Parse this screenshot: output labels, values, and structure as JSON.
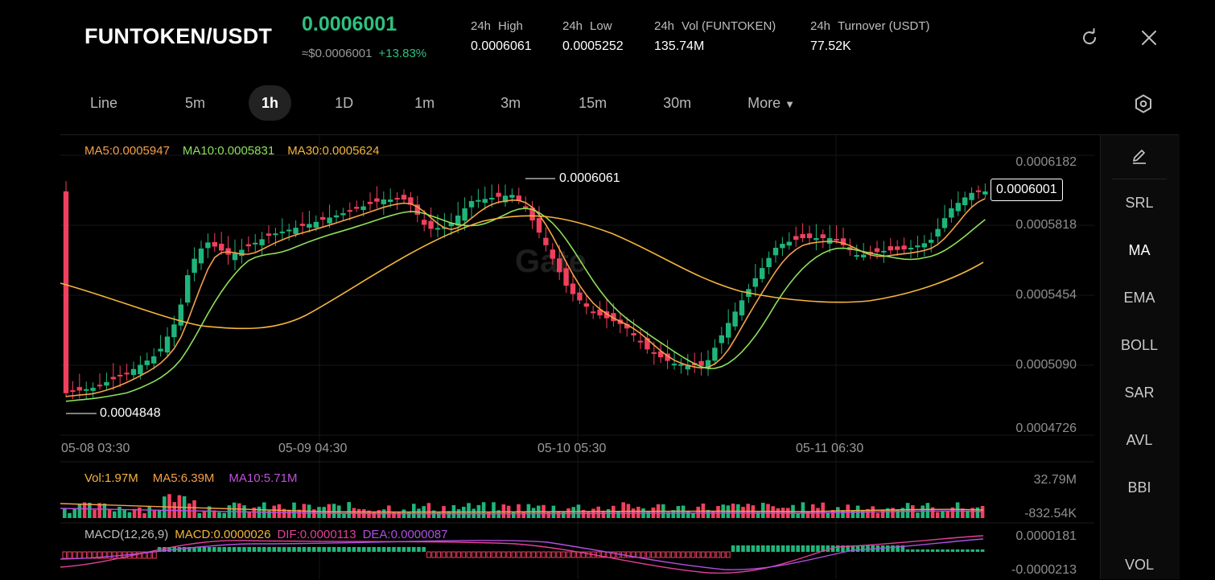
{
  "header": {
    "pair": "FUNTOKEN/USDT",
    "price": "0.0006001",
    "usd_price": "≈$0.0006001",
    "change": "+13.83%",
    "stats": [
      {
        "period": "24h",
        "label": "High",
        "value": "0.0006061"
      },
      {
        "period": "24h",
        "label": "Low",
        "value": "0.0005252"
      },
      {
        "period": "24h",
        "label": "Vol (FUNTOKEN)",
        "value": "135.74M"
      },
      {
        "period": "24h",
        "label": "Turnover (USDT)",
        "value": "77.52K"
      }
    ]
  },
  "tabs": [
    "Line",
    "5m",
    "1h",
    "1D",
    "1m",
    "3m",
    "15m",
    "30m",
    "More"
  ],
  "active_tab": "1h",
  "main_chart": {
    "ma_legend": [
      {
        "text": "MA5:0.0005947",
        "color": "#f5a04a"
      },
      {
        "text": "MA10:0.0005831",
        "color": "#8ee05a"
      },
      {
        "text": "MA30:0.0005624",
        "color": "#f4b63c"
      }
    ],
    "y_ticks": [
      "0.0006182",
      "0.0005818",
      "0.0005454",
      "0.0005090",
      "0.0004726"
    ],
    "x_ticks": [
      "05-08 03:30",
      "05-09 04:30",
      "05-10 05:30",
      "05-11 06:30"
    ],
    "high_marker": "0.0006061",
    "low_marker": "0.0004848",
    "current_price": "0.0006001",
    "watermark": "Gate"
  },
  "volume": {
    "legend": [
      {
        "text": "Vol:1.97M",
        "color": "#f4b63c"
      },
      {
        "text": "MA5:6.39M",
        "color": "#f5a04a"
      },
      {
        "text": "MA10:5.71M",
        "color": "#c04fe0"
      }
    ],
    "y_ticks": [
      "32.79M",
      "-832.54K"
    ]
  },
  "macd": {
    "legend": [
      {
        "text": "MACD(12,26,9)",
        "color": "#bdbdbd"
      },
      {
        "text": "MACD:0.0000026",
        "color": "#f4b63c"
      },
      {
        "text": "DIF:0.0000113",
        "color": "#e0409a"
      },
      {
        "text": "DEA:0.0000087",
        "color": "#b04fe0"
      }
    ],
    "y_ticks": [
      "0.0000181",
      "-0.0000213"
    ]
  },
  "indicators": [
    "SRL",
    "MA",
    "EMA",
    "BOLL",
    "SAR",
    "AVL",
    "BBI",
    "VOL"
  ],
  "active_indicator": "MA",
  "colors": {
    "up": "#1fb57a",
    "down": "#f0405e",
    "accent_green": "#2ec07f"
  },
  "icons": {
    "refresh": "refresh-icon",
    "close": "close-icon",
    "settings": "settings-icon",
    "draw": "pencil-icon"
  }
}
